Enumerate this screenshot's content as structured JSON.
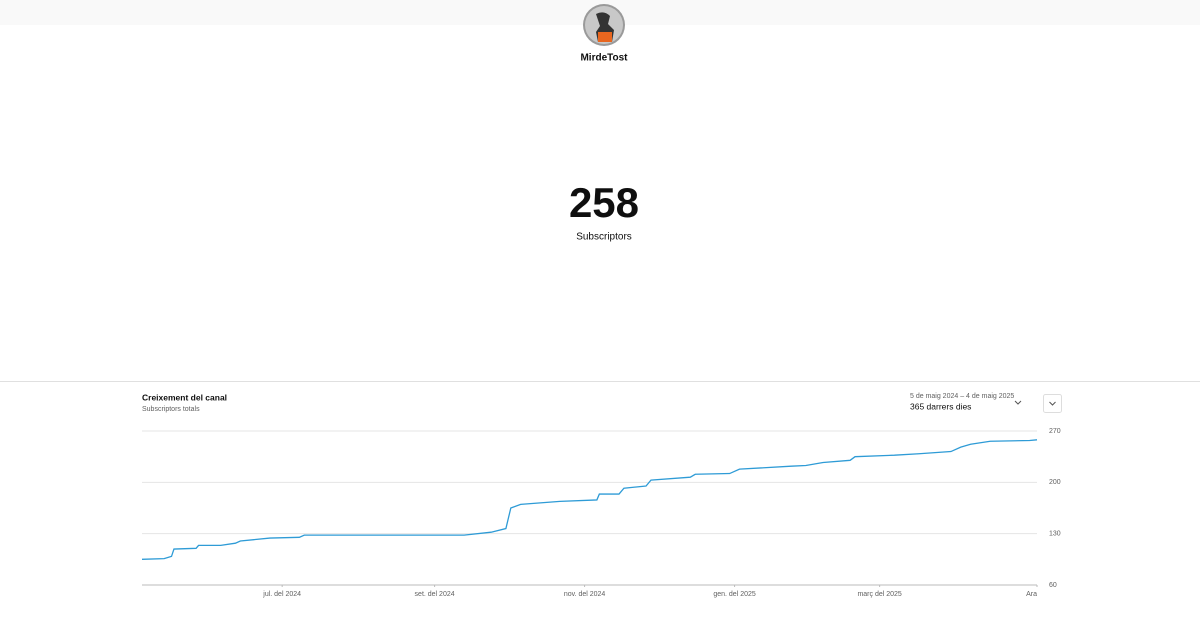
{
  "header": {
    "channel_name": "MirdeTost"
  },
  "counter": {
    "value": 258,
    "label": "Subscriptors"
  },
  "card": {
    "date_range": "5 de maig 2024 – 4 de maig 2025",
    "period": "365 darrers dies"
  },
  "chart_data": {
    "type": "line",
    "title": "Creixement del canal",
    "subtitle": "Subscriptors totals",
    "x": [
      0,
      9,
      12,
      13,
      22,
      23,
      32,
      38,
      40,
      52,
      64,
      66,
      89,
      131,
      142,
      148,
      150,
      154,
      170,
      185,
      186,
      194,
      196,
      205,
      207,
      223,
      225,
      239,
      243,
      264,
      270,
      277,
      288,
      290,
      306,
      316,
      329,
      333,
      337,
      345,
      361,
      364
    ],
    "values": [
      95,
      96,
      99,
      109,
      110,
      114,
      114,
      117,
      120,
      124,
      125,
      128,
      128,
      128,
      132,
      137,
      165,
      170,
      174,
      176,
      184,
      184,
      192,
      195,
      203,
      207,
      211,
      212,
      218,
      222,
      223,
      227,
      230,
      235,
      237,
      239,
      242,
      248,
      252,
      256,
      257,
      258
    ],
    "color": "#2e9bd6",
    "xlim": [
      0,
      364
    ],
    "xticks": [
      {
        "value": 57,
        "label": "jul. del 2024"
      },
      {
        "value": 119,
        "label": "set. del 2024"
      },
      {
        "value": 180,
        "label": "nov. del 2024"
      },
      {
        "value": 241,
        "label": "gen. del 2025"
      },
      {
        "value": 300,
        "label": "març del 2025"
      },
      {
        "value": 364,
        "label": "Ara"
      }
    ],
    "ylim": [
      60,
      270
    ],
    "yticks": [
      60,
      130,
      200,
      270
    ],
    "grid": true
  }
}
